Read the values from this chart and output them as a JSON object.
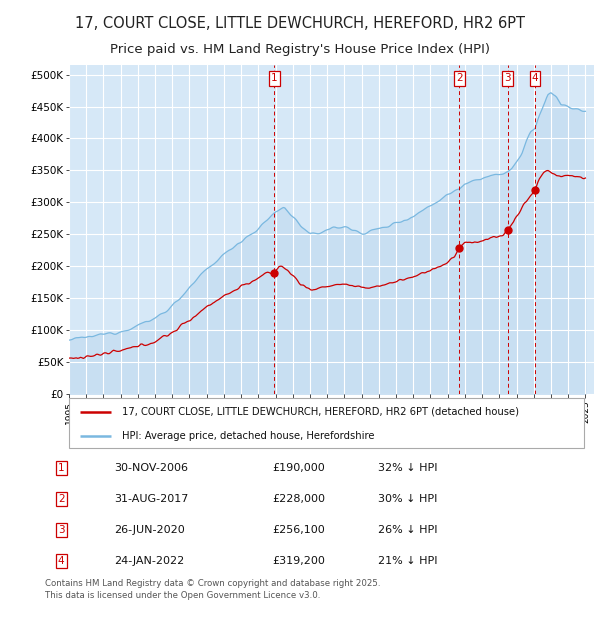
{
  "title": "17, COURT CLOSE, LITTLE DEWCHURCH, HEREFORD, HR2 6PT",
  "subtitle": "Price paid vs. HM Land Registry's House Price Index (HPI)",
  "y_ticks": [
    0,
    50000,
    100000,
    150000,
    200000,
    250000,
    300000,
    350000,
    400000,
    450000,
    500000
  ],
  "y_tick_labels": [
    "£0",
    "£50K",
    "£100K",
    "£150K",
    "£200K",
    "£250K",
    "£300K",
    "£350K",
    "£400K",
    "£450K",
    "£500K"
  ],
  "ylim": [
    0,
    515000
  ],
  "xlim_min": 1995.0,
  "xlim_max": 2025.5,
  "background_color": "#d6e8f7",
  "fig_bg_color": "#ffffff",
  "grid_color": "#ffffff",
  "hpi_color": "#7ab8e0",
  "hpi_fill_color": "#c8dff2",
  "price_color": "#cc0000",
  "vline_color": "#cc0000",
  "title_fontsize": 10.5,
  "subtitle_fontsize": 9.5,
  "purchases": [
    {
      "num": 1,
      "date_x": 2006.92,
      "price": 190000,
      "label": "30-NOV-2006",
      "price_str": "£190,000",
      "desc": "32% ↓ HPI"
    },
    {
      "num": 2,
      "date_x": 2017.67,
      "price": 228000,
      "label": "31-AUG-2017",
      "price_str": "£228,000",
      "desc": "30% ↓ HPI"
    },
    {
      "num": 3,
      "date_x": 2020.49,
      "price": 256100,
      "label": "26-JUN-2020",
      "price_str": "£256,100",
      "desc": "26% ↓ HPI"
    },
    {
      "num": 4,
      "date_x": 2022.07,
      "price": 319200,
      "label": "24-JAN-2022",
      "price_str": "£319,200",
      "desc": "21% ↓ HPI"
    }
  ],
  "legend_property_label": "17, COURT CLOSE, LITTLE DEWCHURCH, HEREFORD, HR2 6PT (detached house)",
  "legend_hpi_label": "HPI: Average price, detached house, Herefordshire",
  "footer": "Contains HM Land Registry data © Crown copyright and database right 2025.\nThis data is licensed under the Open Government Licence v3.0."
}
